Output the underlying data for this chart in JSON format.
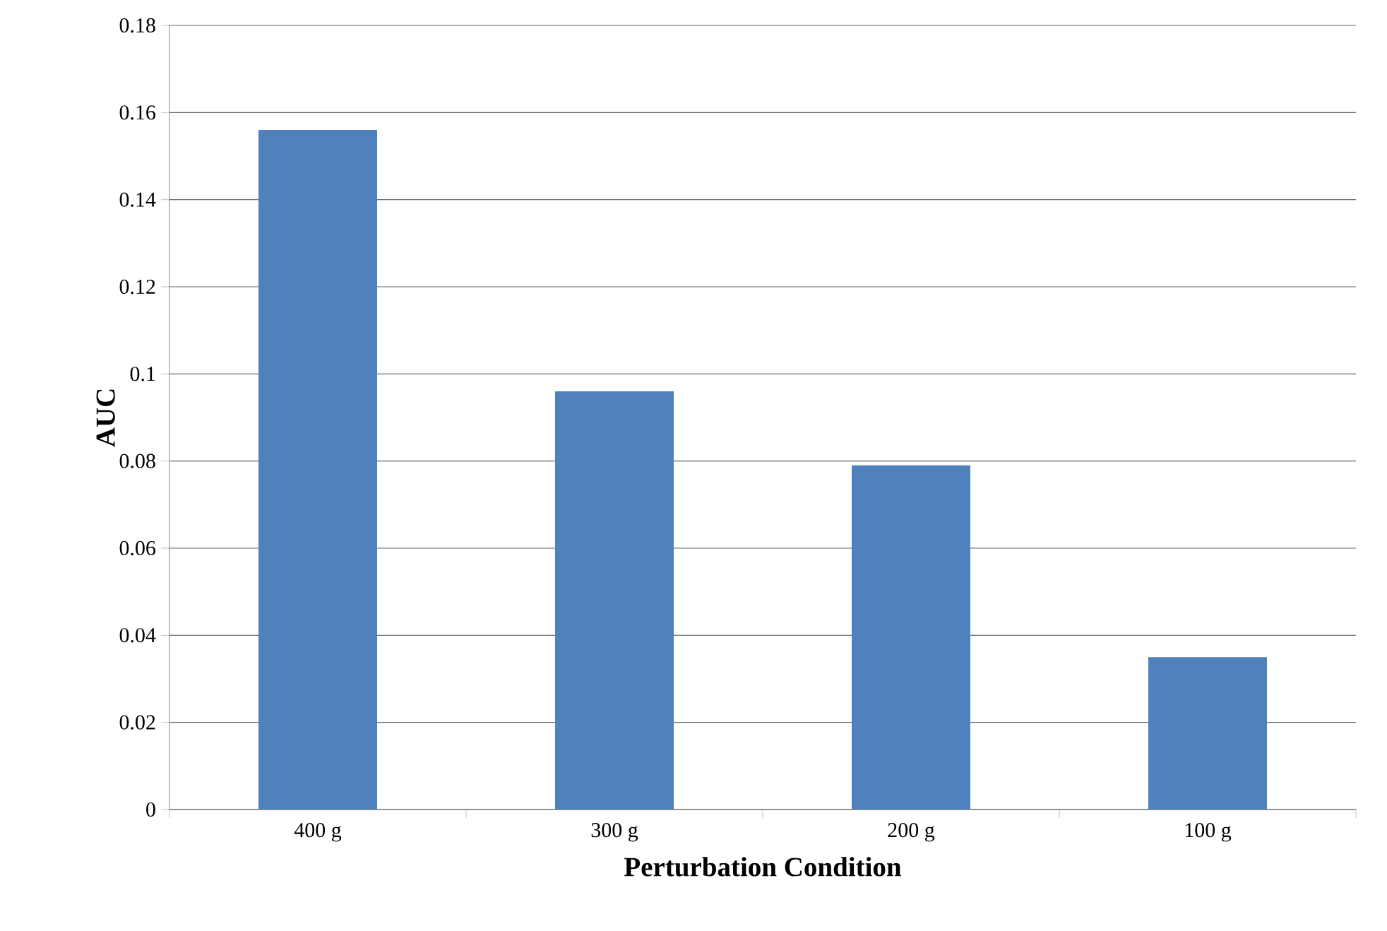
{
  "chart_data": {
    "type": "bar",
    "xlabel": "Perturbation Condition",
    "ylabel": "AUC",
    "categories": [
      "400 g",
      "300 g",
      "200 g",
      "100 g"
    ],
    "values": [
      0.156,
      0.096,
      0.079,
      0.035
    ],
    "color": "#4f81bd",
    "ylim": [
      0,
      0.18
    ],
    "yticks": [
      0,
      0.02,
      0.04,
      0.06,
      0.08,
      0.1,
      0.12,
      0.14,
      0.16,
      0.18
    ],
    "grid": "y"
  }
}
